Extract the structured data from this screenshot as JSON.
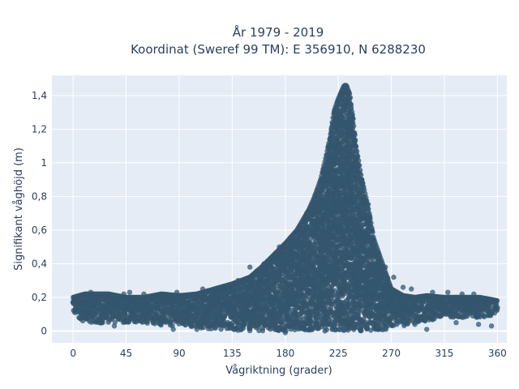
{
  "chart_data": {
    "type": "scatter",
    "title_lines": [
      "År 1979 - 2019",
      "Koordinat (Sweref 99 TM): E 356910, N 6288230"
    ],
    "xlabel": "Vågriktning (grader)",
    "ylabel": "Signifikant våghöjd (m)",
    "xlim": [
      -18,
      368
    ],
    "ylim": [
      -0.07,
      1.52
    ],
    "x_ticks": [
      0,
      45,
      90,
      135,
      180,
      225,
      270,
      315,
      360
    ],
    "x_tick_labels": [
      "0",
      "45",
      "90",
      "135",
      "180",
      "225",
      "270",
      "315",
      "360"
    ],
    "y_ticks": [
      0,
      0.2,
      0.4,
      0.6,
      0.8,
      1.0,
      1.2,
      1.4
    ],
    "y_tick_labels": [
      "0",
      "0,2",
      "0,4",
      "0,6",
      "0,8",
      "1",
      "1,2",
      "1,4"
    ],
    "grid": true,
    "legend": false,
    "colors": {
      "marker": "#34566d",
      "plot_bg": "#e5ecf6",
      "grid": "#ffffff",
      "text": "#2a3f5f"
    },
    "envelope": {
      "x": [
        0,
        10,
        20,
        30,
        45,
        60,
        75,
        90,
        105,
        120,
        135,
        150,
        160,
        170,
        180,
        190,
        200,
        205,
        210,
        215,
        218,
        220,
        222,
        225,
        228,
        230,
        232,
        235,
        240,
        245,
        250,
        255,
        260,
        265,
        270,
        280,
        290,
        300,
        315,
        330,
        345,
        360
      ],
      "y_max": [
        0.2,
        0.22,
        0.22,
        0.22,
        0.2,
        0.2,
        0.22,
        0.21,
        0.22,
        0.25,
        0.28,
        0.32,
        0.38,
        0.45,
        0.52,
        0.6,
        0.72,
        0.8,
        0.9,
        1.05,
        1.15,
        1.25,
        1.32,
        1.38,
        1.43,
        1.46,
        1.46,
        1.4,
        1.1,
        0.9,
        0.75,
        0.55,
        0.45,
        0.35,
        0.25,
        0.21,
        0.2,
        0.21,
        0.2,
        0.2,
        0.2,
        0.18
      ],
      "y_min": [
        0.1,
        0.05,
        0.04,
        0.05,
        0.05,
        0.05,
        0.03,
        0.03,
        0.02,
        0.01,
        0.0,
        0.0,
        0.0,
        0.0,
        0.0,
        0.0,
        0.0,
        0.0,
        0.0,
        0.0,
        0.0,
        0.0,
        0.0,
        0.0,
        0.0,
        0.0,
        0.0,
        0.0,
        0.0,
        0.0,
        0.0,
        0.0,
        0.0,
        0.01,
        0.02,
        0.03,
        0.05,
        0.06,
        0.08,
        0.08,
        0.08,
        0.1
      ]
    },
    "outliers": [
      {
        "x": 5,
        "y": 0.08
      },
      {
        "x": 15,
        "y": 0.23
      },
      {
        "x": 25,
        "y": 0.05
      },
      {
        "x": 35,
        "y": 0.03
      },
      {
        "x": 43,
        "y": 0.22
      },
      {
        "x": 48,
        "y": 0.23
      },
      {
        "x": 60,
        "y": 0.22
      },
      {
        "x": 85,
        "y": 0.01
      },
      {
        "x": 88,
        "y": 0.23
      },
      {
        "x": 105,
        "y": 0.01
      },
      {
        "x": 110,
        "y": 0.25
      },
      {
        "x": 125,
        "y": 0.26
      },
      {
        "x": 140,
        "y": 0.3
      },
      {
        "x": 150,
        "y": 0.38
      },
      {
        "x": 162,
        "y": 0.4
      },
      {
        "x": 175,
        "y": 0.5
      },
      {
        "x": 180,
        "y": -0.01
      },
      {
        "x": 265,
        "y": 0.38
      },
      {
        "x": 272,
        "y": 0.32
      },
      {
        "x": 280,
        "y": 0.26
      },
      {
        "x": 287,
        "y": 0.25
      },
      {
        "x": 290,
        "y": 0.04
      },
      {
        "x": 300,
        "y": 0.01
      },
      {
        "x": 305,
        "y": 0.23
      },
      {
        "x": 318,
        "y": 0.23
      },
      {
        "x": 325,
        "y": 0.05
      },
      {
        "x": 330,
        "y": 0.22
      },
      {
        "x": 340,
        "y": 0.22
      },
      {
        "x": 344,
        "y": 0.04
      },
      {
        "x": 355,
        "y": 0.03
      }
    ]
  }
}
